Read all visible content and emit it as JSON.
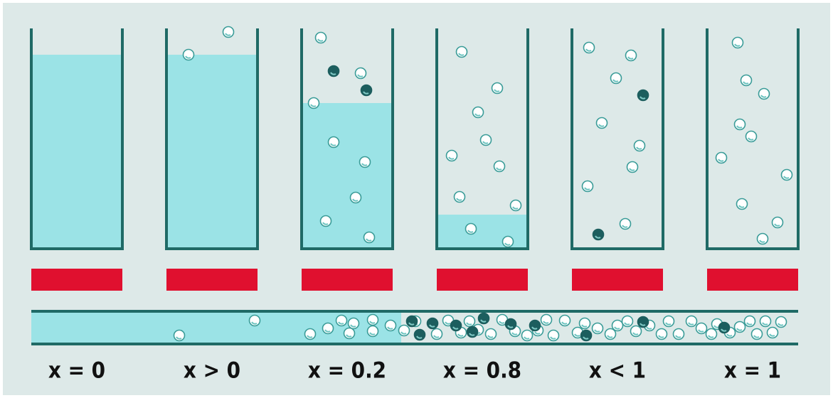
{
  "labels": [
    "x = 0",
    "x > 0",
    "x = 0.2",
    "x = 0.8",
    "x < 1",
    "x = 1"
  ]
}
